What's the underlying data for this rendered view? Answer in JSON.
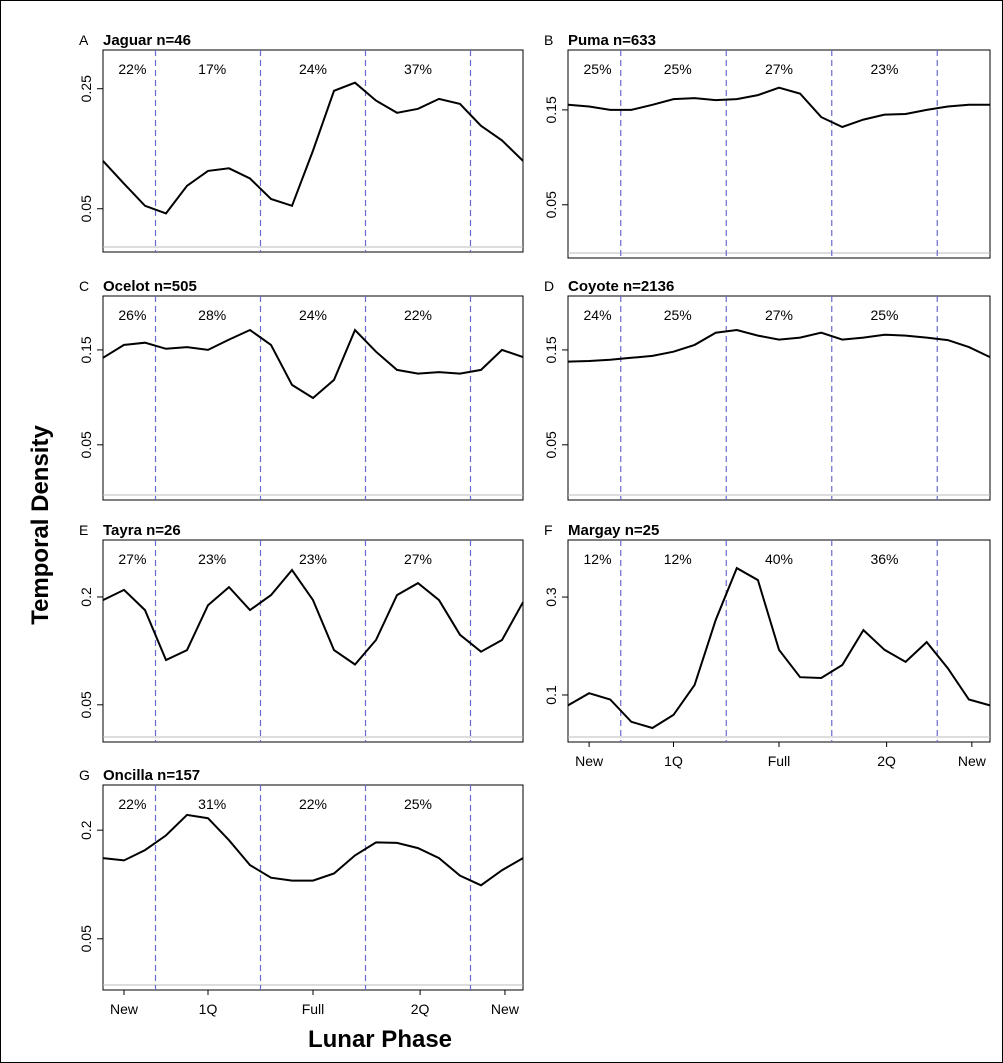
{
  "ylabel": "Temporal Density",
  "xlabel": "Lunar Phase",
  "chart_data": [
    {
      "type": "line",
      "panel": "A",
      "title": "Jaguar n=46",
      "log_scale": true,
      "color": "#000000",
      "vline_color": "#6a6acd",
      "vlines": [
        0.125,
        0.375,
        0.625,
        0.875
      ],
      "annotations": [
        "22%",
        "17%",
        "24%",
        "37%"
      ],
      "xlim": [
        0,
        1
      ],
      "ylim": [
        0.028,
        0.42
      ],
      "yticks": [
        0.05,
        0.25
      ],
      "x": [
        0,
        0.05,
        0.1,
        0.15,
        0.2,
        0.25,
        0.3,
        0.35,
        0.4,
        0.45,
        0.5,
        0.55,
        0.6,
        0.65,
        0.7,
        0.75,
        0.8,
        0.85,
        0.9,
        0.95,
        1
      ],
      "values": [
        0.095,
        0.07,
        0.052,
        0.047,
        0.068,
        0.083,
        0.086,
        0.075,
        0.057,
        0.052,
        0.109,
        0.243,
        0.271,
        0.213,
        0.181,
        0.191,
        0.218,
        0.204,
        0.152,
        0.125,
        0.095
      ]
    },
    {
      "type": "line",
      "panel": "B",
      "title": "Puma n=633",
      "log_scale": true,
      "color": "#000000",
      "vline_color": "#6a6acd",
      "vlines": [
        0.125,
        0.375,
        0.625,
        0.875
      ],
      "annotations": [
        "25%",
        "25%",
        "27%",
        "23%"
      ],
      "xlim": [
        0,
        1
      ],
      "ylim": [
        0.027,
        0.3
      ],
      "yticks": [
        0.05,
        0.15
      ],
      "x": [
        0,
        0.05,
        0.1,
        0.15,
        0.2,
        0.25,
        0.3,
        0.35,
        0.4,
        0.45,
        0.5,
        0.55,
        0.6,
        0.65,
        0.7,
        0.75,
        0.8,
        0.85,
        0.9,
        0.95,
        1
      ],
      "values": [
        0.159,
        0.156,
        0.15,
        0.15,
        0.159,
        0.17,
        0.172,
        0.168,
        0.17,
        0.178,
        0.194,
        0.181,
        0.138,
        0.123,
        0.134,
        0.142,
        0.143,
        0.15,
        0.156,
        0.159,
        0.159
      ]
    },
    {
      "type": "line",
      "panel": "C",
      "title": "Ocelot n=505",
      "log_scale": true,
      "color": "#000000",
      "vline_color": "#6a6acd",
      "vlines": [
        0.125,
        0.375,
        0.625,
        0.875
      ],
      "annotations": [
        "26%",
        "28%",
        "24%",
        "22%"
      ],
      "xlim": [
        0,
        1
      ],
      "ylim": [
        0.0264,
        0.28
      ],
      "yticks": [
        0.05,
        0.15
      ],
      "x": [
        0,
        0.05,
        0.1,
        0.15,
        0.2,
        0.25,
        0.3,
        0.35,
        0.4,
        0.45,
        0.5,
        0.55,
        0.6,
        0.65,
        0.7,
        0.75,
        0.8,
        0.85,
        0.9,
        0.95,
        1
      ],
      "values": [
        0.137,
        0.159,
        0.163,
        0.152,
        0.155,
        0.15,
        0.169,
        0.189,
        0.159,
        0.1,
        0.086,
        0.106,
        0.189,
        0.147,
        0.119,
        0.114,
        0.116,
        0.114,
        0.119,
        0.15,
        0.138
      ]
    },
    {
      "type": "line",
      "panel": "D",
      "title": "Coyote n=2136",
      "log_scale": true,
      "color": "#000000",
      "vline_color": "#6a6acd",
      "vlines": [
        0.125,
        0.375,
        0.625,
        0.875
      ],
      "annotations": [
        "24%",
        "25%",
        "27%",
        "25%"
      ],
      "xlim": [
        0,
        1
      ],
      "ylim": [
        0.0264,
        0.28
      ],
      "yticks": [
        0.05,
        0.15
      ],
      "x": [
        0,
        0.05,
        0.1,
        0.15,
        0.2,
        0.25,
        0.3,
        0.35,
        0.4,
        0.45,
        0.5,
        0.55,
        0.6,
        0.65,
        0.7,
        0.75,
        0.8,
        0.85,
        0.9,
        0.95,
        1
      ],
      "values": [
        0.131,
        0.132,
        0.134,
        0.137,
        0.14,
        0.147,
        0.159,
        0.183,
        0.189,
        0.177,
        0.169,
        0.173,
        0.183,
        0.169,
        0.173,
        0.179,
        0.177,
        0.173,
        0.168,
        0.155,
        0.138
      ]
    },
    {
      "type": "line",
      "panel": "E",
      "title": "Tayra n=26",
      "log_scale": true,
      "color": "#000000",
      "vline_color": "#6a6acd",
      "vlines": [
        0.125,
        0.375,
        0.625,
        0.875
      ],
      "annotations": [
        "27%",
        "23%",
        "23%",
        "27%"
      ],
      "xlim": [
        0,
        1
      ],
      "ylim": [
        0.031,
        0.416
      ],
      "yticks": [
        0.05,
        0.2
      ],
      "x": [
        0,
        0.05,
        0.1,
        0.15,
        0.2,
        0.25,
        0.3,
        0.35,
        0.4,
        0.45,
        0.5,
        0.55,
        0.6,
        0.65,
        0.7,
        0.75,
        0.8,
        0.85,
        0.9,
        0.95,
        1
      ],
      "values": [
        0.192,
        0.219,
        0.169,
        0.089,
        0.101,
        0.18,
        0.227,
        0.169,
        0.205,
        0.283,
        0.192,
        0.101,
        0.084,
        0.115,
        0.205,
        0.239,
        0.192,
        0.123,
        0.099,
        0.115,
        0.187
      ]
    },
    {
      "type": "line",
      "panel": "F",
      "title": "Margay n=25",
      "log_scale": true,
      "color": "#000000",
      "vline_color": "#6a6acd",
      "vlines": [
        0.125,
        0.375,
        0.625,
        0.875
      ],
      "annotations": [
        "12%",
        "12%",
        "40%",
        "36%"
      ],
      "xlim": [
        0,
        1
      ],
      "ylim": [
        0.059,
        0.569
      ],
      "yticks": [
        0.1,
        0.3
      ],
      "xticks": [
        {
          "value": 0.05,
          "label": "New"
        },
        {
          "value": 0.25,
          "label": "1Q"
        },
        {
          "value": 0.5,
          "label": "Full"
        },
        {
          "value": 0.755,
          "label": "2Q"
        },
        {
          "value": 0.957,
          "label": "New"
        }
      ],
      "x": [
        0,
        0.05,
        0.1,
        0.15,
        0.2,
        0.25,
        0.3,
        0.35,
        0.4,
        0.45,
        0.5,
        0.55,
        0.6,
        0.65,
        0.7,
        0.75,
        0.8,
        0.85,
        0.9,
        0.95,
        1
      ],
      "values": [
        0.089,
        0.102,
        0.095,
        0.074,
        0.069,
        0.08,
        0.112,
        0.232,
        0.415,
        0.363,
        0.166,
        0.122,
        0.121,
        0.14,
        0.207,
        0.166,
        0.145,
        0.181,
        0.135,
        0.095,
        0.089
      ]
    },
    {
      "type": "line",
      "panel": "G",
      "title": "Oncilla n=157",
      "log_scale": true,
      "color": "#000000",
      "vline_color": "#6a6acd",
      "vlines": [
        0.125,
        0.375,
        0.625,
        0.875
      ],
      "annotations": [
        "22%",
        "31%",
        "22%",
        "25%"
      ],
      "xlim": [
        0,
        1
      ],
      "ylim": [
        0.026,
        0.356
      ],
      "yticks": [
        0.05,
        0.2
      ],
      "xticks": [
        {
          "value": 0.05,
          "label": "New"
        },
        {
          "value": 0.25,
          "label": "1Q"
        },
        {
          "value": 0.5,
          "label": "Full"
        },
        {
          "value": 0.755,
          "label": "2Q"
        },
        {
          "value": 0.957,
          "label": "New"
        }
      ],
      "x": [
        0,
        0.05,
        0.1,
        0.15,
        0.2,
        0.25,
        0.3,
        0.35,
        0.4,
        0.45,
        0.5,
        0.55,
        0.6,
        0.65,
        0.7,
        0.75,
        0.8,
        0.85,
        0.9,
        0.95,
        1
      ],
      "values": [
        0.14,
        0.136,
        0.155,
        0.187,
        0.243,
        0.233,
        0.176,
        0.128,
        0.109,
        0.105,
        0.105,
        0.115,
        0.145,
        0.171,
        0.17,
        0.159,
        0.14,
        0.112,
        0.099,
        0.12,
        0.14
      ]
    }
  ]
}
